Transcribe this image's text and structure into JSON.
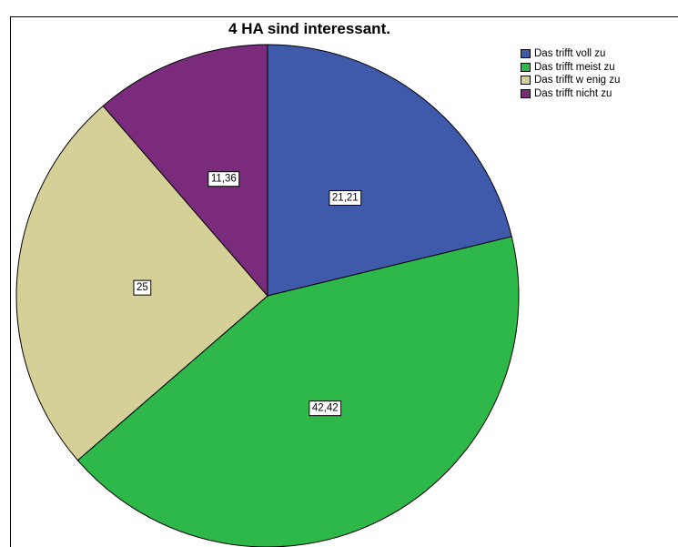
{
  "chart_data": {
    "type": "pie",
    "title": "4 HA sind interessant.",
    "categories": [
      "Das trifft voll zu",
      "Das trifft meist zu",
      "Das trifft w enig zu",
      "Das trifft nicht zu"
    ],
    "values": [
      21.21,
      42.42,
      25,
      11.36
    ],
    "labels": [
      "21,21",
      "42,42",
      "25",
      "11,36"
    ],
    "colors": [
      "#3f59ab",
      "#2fb84a",
      "#d5cf98",
      "#7b2b7b"
    ],
    "legend_position": "top-right"
  }
}
